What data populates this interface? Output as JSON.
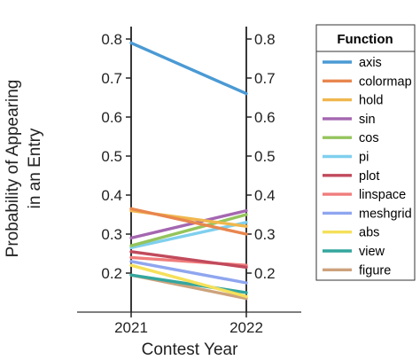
{
  "chart_data": {
    "type": "line",
    "title": "",
    "xlabel": "Contest Year",
    "ylabel": [
      "Probability of Appearing",
      "in an Entry"
    ],
    "categories": [
      "2021",
      "2022"
    ],
    "ylim": [
      0.1,
      0.85
    ],
    "yticks": [
      "0.2",
      "0.3",
      "0.4",
      "0.5",
      "0.6",
      "0.7",
      "0.8"
    ],
    "legend": {
      "title": "Function",
      "position": "right"
    },
    "series": [
      {
        "name": "axis",
        "values": [
          0.79,
          0.66
        ],
        "color": "#4a9ad4"
      },
      {
        "name": "colormap",
        "values": [
          0.365,
          0.3
        ],
        "color": "#e8864e"
      },
      {
        "name": "hold",
        "values": [
          0.36,
          0.32
        ],
        "color": "#f0b74d"
      },
      {
        "name": "sin",
        "values": [
          0.29,
          0.36
        ],
        "color": "#a466b0"
      },
      {
        "name": "cos",
        "values": [
          0.27,
          0.35
        ],
        "color": "#94c45c"
      },
      {
        "name": "pi",
        "values": [
          0.265,
          0.33
        ],
        "color": "#7fcfee"
      },
      {
        "name": "plot",
        "values": [
          0.255,
          0.215
        ],
        "color": "#c14a5c"
      },
      {
        "name": "linspace",
        "values": [
          0.24,
          0.22
        ],
        "color": "#f07c7c"
      },
      {
        "name": "meshgrid",
        "values": [
          0.23,
          0.175
        ],
        "color": "#8fa6ef"
      },
      {
        "name": "abs",
        "values": [
          0.22,
          0.14
        ],
        "color": "#f5e05a"
      },
      {
        "name": "view",
        "values": [
          0.195,
          0.15
        ],
        "color": "#34a69e"
      },
      {
        "name": "figure",
        "values": [
          0.195,
          0.135
        ],
        "color": "#cda27c"
      }
    ]
  }
}
